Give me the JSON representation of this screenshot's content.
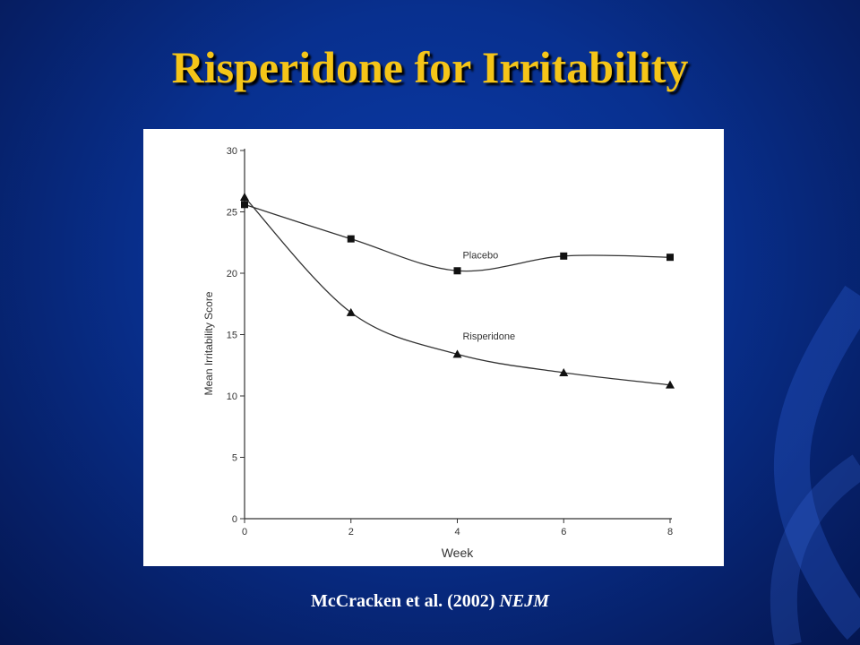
{
  "slide": {
    "title": "Risperidone for Irritability",
    "citation_authors": "McCracken et al. (2002)",
    "citation_journal": "NEJM",
    "title_color": "#f5c518",
    "background_color": "#08308f"
  },
  "chart_data": {
    "type": "line",
    "xlabel": "Week",
    "ylabel": "Mean Irritability Score",
    "x": [
      0,
      2,
      4,
      6,
      8
    ],
    "xlim": [
      0,
      8
    ],
    "ylim": [
      0,
      30
    ],
    "x_ticks": [
      0,
      2,
      4,
      6,
      8
    ],
    "y_ticks": [
      0,
      5,
      10,
      15,
      20,
      25,
      30
    ],
    "grid": false,
    "series": [
      {
        "name": "Placebo",
        "marker": "square",
        "values": [
          25.6,
          22.8,
          20.2,
          21.4,
          21.3
        ]
      },
      {
        "name": "Risperidone",
        "marker": "triangle",
        "values": [
          26.2,
          16.8,
          13.4,
          11.9,
          10.9
        ]
      }
    ]
  }
}
